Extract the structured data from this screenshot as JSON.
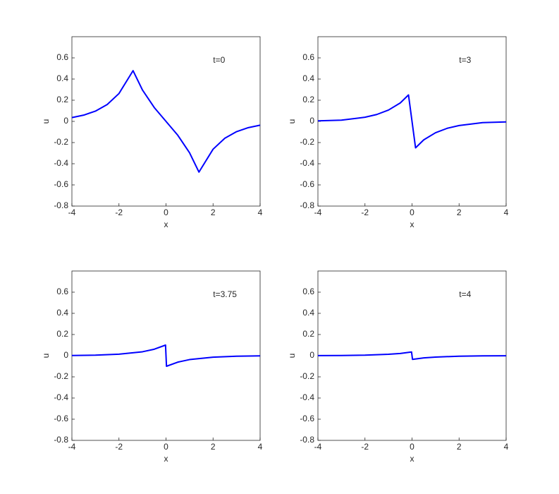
{
  "chart_data": [
    {
      "type": "line",
      "annotation": "t=0",
      "xlabel": "x",
      "ylabel": "u",
      "x": [
        -4,
        -3.5,
        -3,
        -2.5,
        -2,
        -1.4,
        -1,
        -0.5,
        0,
        0.5,
        1,
        1.4,
        2,
        2.5,
        3,
        3.5,
        4
      ],
      "series": [
        {
          "color": "#0000ff",
          "values": [
            0.036,
            0.059,
            0.097,
            0.159,
            0.263,
            0.479,
            0.296,
            0.131,
            0,
            -0.131,
            -0.296,
            -0.479,
            -0.263,
            -0.159,
            -0.097,
            -0.059,
            -0.036
          ]
        }
      ],
      "xlim": [
        -4,
        4
      ],
      "ylim": [
        -0.8,
        0.8
      ],
      "xticks": [
        -4,
        -2,
        0,
        2,
        4
      ],
      "yticks": [
        -0.8,
        -0.6,
        -0.4,
        -0.2,
        0,
        0.2,
        0.4,
        0.6
      ]
    },
    {
      "type": "line",
      "annotation": "t=3",
      "xlabel": "x",
      "ylabel": "u",
      "x": [
        -4,
        -3,
        -2,
        -1.5,
        -1,
        -0.5,
        -0.15,
        0.15,
        0.5,
        1,
        1.5,
        2,
        3,
        4
      ],
      "series": [
        {
          "color": "#0000ff",
          "values": [
            0.005,
            0.012,
            0.039,
            0.065,
            0.107,
            0.174,
            0.25,
            -0.25,
            -0.174,
            -0.107,
            -0.065,
            -0.039,
            -0.012,
            -0.005
          ]
        }
      ],
      "xlim": [
        -4,
        4
      ],
      "ylim": [
        -0.8,
        0.8
      ],
      "xticks": [
        -4,
        -2,
        0,
        2,
        4
      ],
      "yticks": [
        -0.8,
        -0.6,
        -0.4,
        -0.2,
        0,
        0.2,
        0.4,
        0.6
      ]
    },
    {
      "type": "line",
      "annotation": "t=3.75",
      "xlabel": "x",
      "ylabel": "u",
      "x": [
        -4,
        -3,
        -2,
        -1,
        -0.5,
        -0.02,
        0.02,
        0.5,
        1,
        2,
        3,
        4
      ],
      "series": [
        {
          "color": "#0000ff",
          "values": [
            0.002,
            0.005,
            0.014,
            0.037,
            0.061,
            0.1,
            -0.1,
            -0.061,
            -0.037,
            -0.014,
            -0.005,
            -0.002
          ]
        }
      ],
      "xlim": [
        -4,
        4
      ],
      "ylim": [
        -0.8,
        0.8
      ],
      "xticks": [
        -4,
        -2,
        0,
        2,
        4
      ],
      "yticks": [
        -0.8,
        -0.6,
        -0.4,
        -0.2,
        0,
        0.2,
        0.4,
        0.6
      ]
    },
    {
      "type": "line",
      "annotation": "t=4",
      "xlabel": "x",
      "ylabel": "u",
      "x": [
        -4,
        -3,
        -2,
        -1,
        -0.5,
        -0.02,
        0.02,
        0.5,
        1,
        2,
        3,
        4
      ],
      "series": [
        {
          "color": "#0000ff",
          "values": [
            0.001,
            0.002,
            0.005,
            0.013,
            0.021,
            0.035,
            -0.035,
            -0.021,
            -0.013,
            -0.005,
            -0.002,
            -0.001
          ]
        }
      ],
      "xlim": [
        -4,
        4
      ],
      "ylim": [
        -0.8,
        0.8
      ],
      "xticks": [
        -4,
        -2,
        0,
        2,
        4
      ],
      "yticks": [
        -0.8,
        -0.6,
        -0.4,
        -0.2,
        0,
        0.2,
        0.4,
        0.6
      ]
    }
  ]
}
